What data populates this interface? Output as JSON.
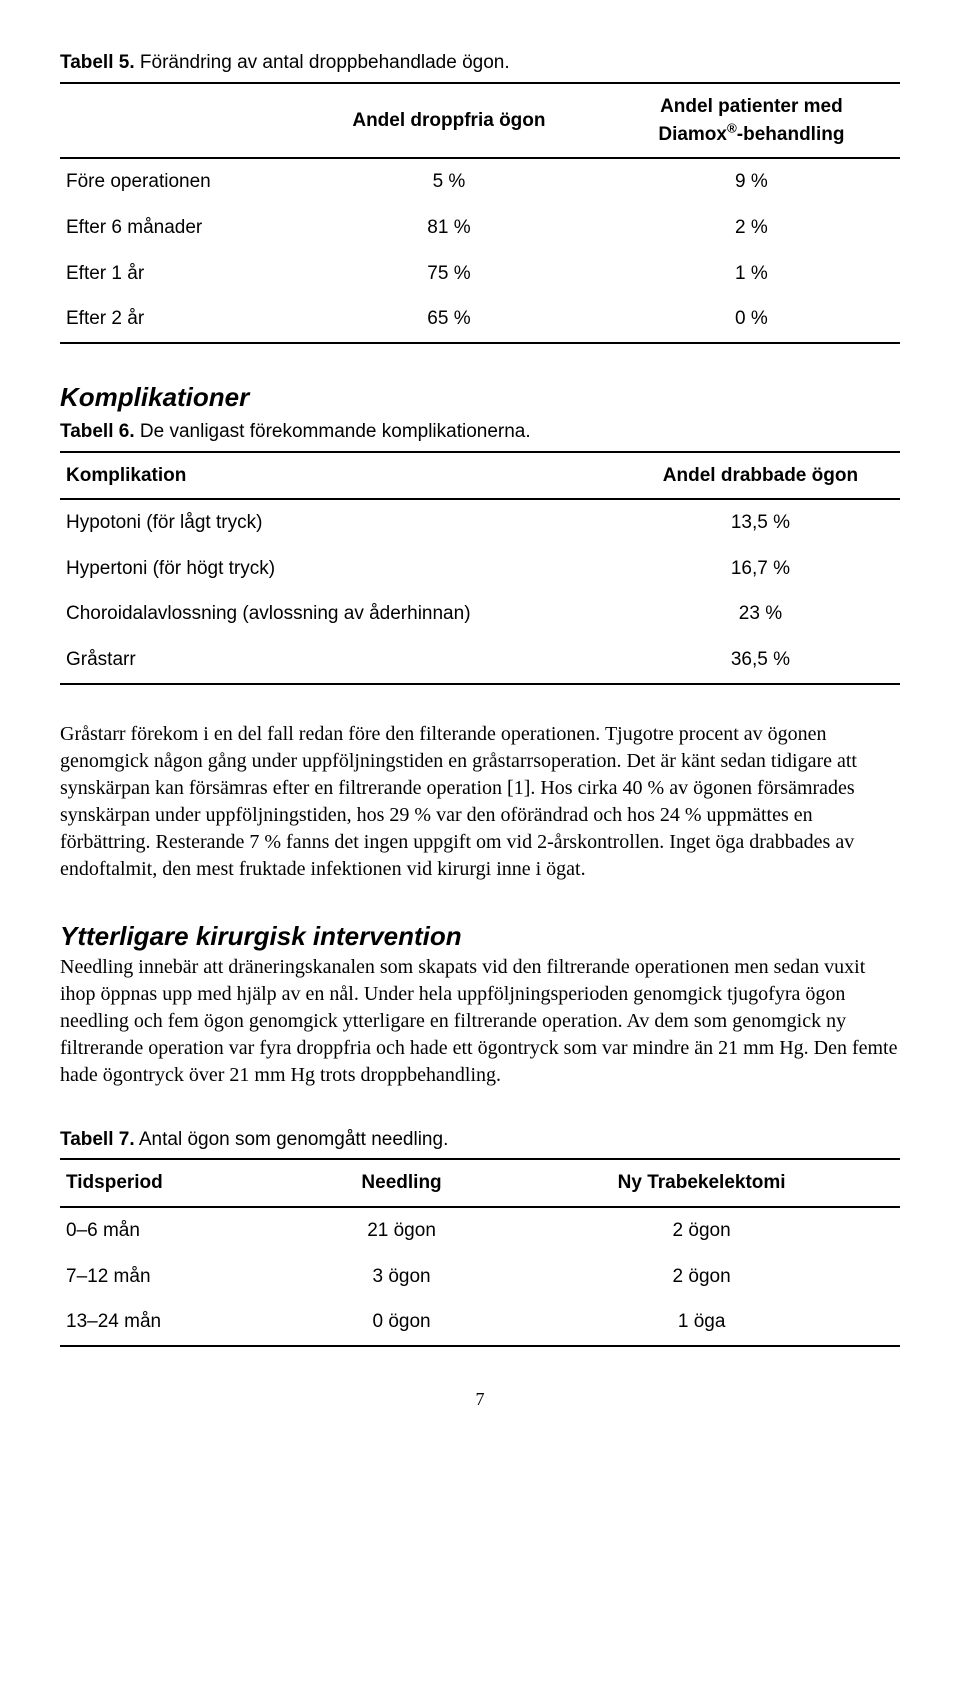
{
  "table5": {
    "caption_bold": "Tabell 5.",
    "caption_rest": " Förändring av antal droppbehandlade ögon.",
    "headers": [
      "",
      "Andel droppfria ögon",
      "Andel patienter med Diamox®-behandling"
    ],
    "rows": [
      [
        "Före operationen",
        "5 %",
        "9 %"
      ],
      [
        "Efter 6 månader",
        "81 %",
        "2 %"
      ],
      [
        "Efter 1 år",
        "75 %",
        "1 %"
      ],
      [
        "Efter 2 år",
        "65 %",
        "0 %"
      ]
    ]
  },
  "section1_heading": "Komplikationer",
  "table6": {
    "caption_bold": "Tabell 6.",
    "caption_rest": " De vanligast förekommande komplikationerna.",
    "headers": [
      "Komplikation",
      "Andel drabbade ögon"
    ],
    "rows": [
      [
        "Hypotoni (för lågt tryck)",
        "13,5 %"
      ],
      [
        "Hypertoni (för högt tryck)",
        "16,7 %"
      ],
      [
        "Choroidalavlossning (avlossning av åderhinnan)",
        "23 %"
      ],
      [
        "Gråstarr",
        "36,5 %"
      ]
    ]
  },
  "para1": "Gråstarr förekom i en del fall redan före den filterande operationen. Tjugotre procent av ögonen genomgick någon gång under uppföljningstiden en gråstarrsoperation. Det är känt sedan tidigare att synskärpan kan försämras efter en filtrerande operation [1]. Hos cirka 40 % av ögonen försämrades synskärpan under uppföljningstiden, hos 29 % var den oförändrad och hos 24 % uppmättes en förbättring. Resterande 7 % fanns det ingen uppgift om vid 2-årskontrollen. Inget öga drabbades av endoftalmit, den mest fruktade infektionen vid kirurgi inne i ögat.",
  "section2_heading": "Ytterligare kirurgisk intervention",
  "para2": "Needling innebär att dräneringskanalen som skapats vid den filtrerande operationen men sedan vuxit ihop öppnas upp med hjälp av en nål. Under hela uppföljningsperioden genomgick tjugofyra ögon needling och fem ögon genomgick ytterligare en filtrerande operation. Av dem som genomgick ny filtrerande operation var fyra droppfria och hade ett ögontryck som var mindre än 21 mm Hg. Den femte hade ögontryck över 21 mm Hg trots droppbehandling.",
  "table7": {
    "caption_bold": "Tabell 7.",
    "caption_rest": " Antal ögon som genomgått needling.",
    "headers": [
      "Tidsperiod",
      "Needling",
      "Ny Trabekelektomi"
    ],
    "rows": [
      [
        "0–6 mån",
        "21 ögon",
        "2 ögon"
      ],
      [
        "7–12 mån",
        "3 ögon",
        "2 ögon"
      ],
      [
        "13–24 mån",
        "0 ögon",
        "1 öga"
      ]
    ]
  },
  "page_number": "7"
}
